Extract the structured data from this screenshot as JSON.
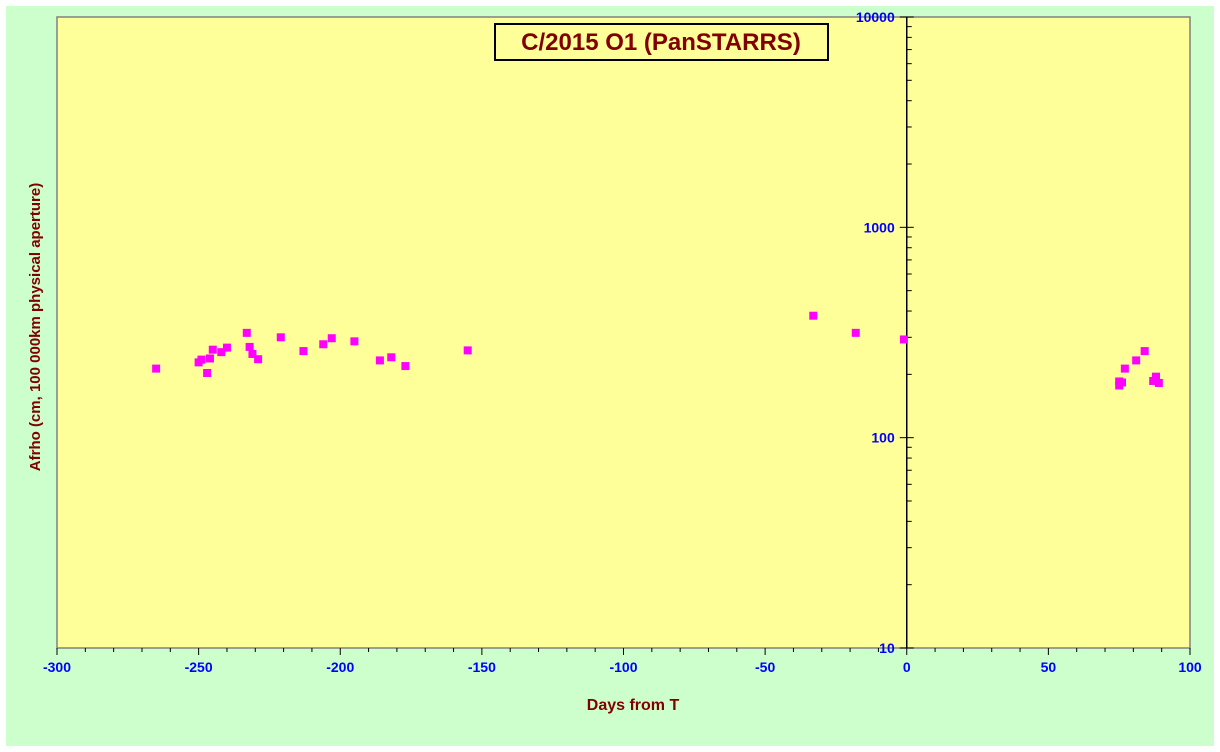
{
  "chart_data": {
    "type": "scatter",
    "title": "C/2015 O1 (PanSTARRS)",
    "xlabel": "Days from T",
    "ylabel": "Afrho (cm, 100 000km physical aperture)",
    "xlim": [
      -300,
      100
    ],
    "ylim": [
      10,
      10000
    ],
    "yscale": "log",
    "x_ticks": [
      -300,
      -250,
      -200,
      -150,
      -100,
      -50,
      0,
      50,
      100
    ],
    "y_ticks": [
      10,
      100,
      1000,
      10000
    ],
    "x_tick_labels": [
      "-300",
      "-250",
      "-200",
      "-150",
      "-100",
      "-50",
      "0",
      "50",
      "100"
    ],
    "y_tick_labels": [
      "10",
      "100",
      "1000",
      "10000"
    ],
    "grid": false,
    "legend": "none",
    "series": [
      {
        "marker_color": "#ff00ff",
        "points": [
          {
            "x": -265,
            "y": 213
          },
          {
            "x": -250,
            "y": 228
          },
          {
            "x": -249,
            "y": 235
          },
          {
            "x": -247,
            "y": 203
          },
          {
            "x": -246,
            "y": 238
          },
          {
            "x": -245,
            "y": 262
          },
          {
            "x": -242,
            "y": 255
          },
          {
            "x": -240,
            "y": 268
          },
          {
            "x": -233,
            "y": 315
          },
          {
            "x": -232,
            "y": 270
          },
          {
            "x": -231,
            "y": 250
          },
          {
            "x": -229,
            "y": 236
          },
          {
            "x": -221,
            "y": 300
          },
          {
            "x": -213,
            "y": 258
          },
          {
            "x": -206,
            "y": 278
          },
          {
            "x": -203,
            "y": 297
          },
          {
            "x": -195,
            "y": 287
          },
          {
            "x": -186,
            "y": 233
          },
          {
            "x": -182,
            "y": 241
          },
          {
            "x": -177,
            "y": 219
          },
          {
            "x": -155,
            "y": 260
          },
          {
            "x": -33,
            "y": 380
          },
          {
            "x": -18,
            "y": 315
          },
          {
            "x": -1,
            "y": 293
          },
          {
            "x": 75,
            "y": 177
          },
          {
            "x": 75,
            "y": 185
          },
          {
            "x": 76,
            "y": 183
          },
          {
            "x": 77,
            "y": 213
          },
          {
            "x": 81,
            "y": 233
          },
          {
            "x": 84,
            "y": 258
          },
          {
            "x": 87,
            "y": 186
          },
          {
            "x": 88,
            "y": 195
          },
          {
            "x": 89,
            "y": 182
          }
        ]
      }
    ]
  },
  "style": {
    "outer_bg": "#ccffcc",
    "plot_bg": "#ffff99",
    "axis_color": "#808080",
    "x_tick_color": "#0000ff",
    "y_tick_color": "#0000ff",
    "label_color": "#800000",
    "title_color": "#800000",
    "title_border": "#000000"
  }
}
